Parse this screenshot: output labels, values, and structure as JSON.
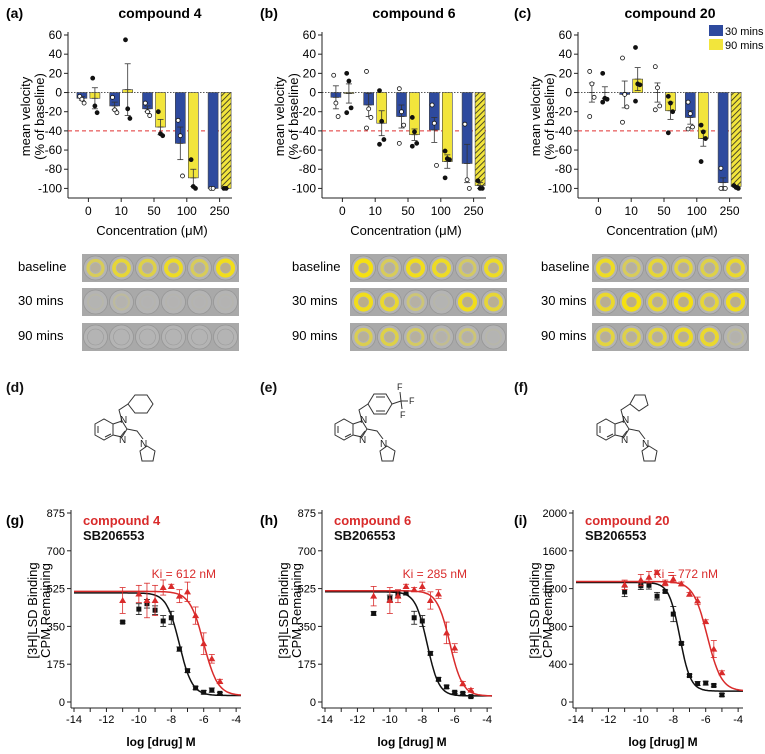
{
  "legend": {
    "items": [
      {
        "label": "30 mins",
        "color": "#2e4a9e"
      },
      {
        "label": "90 mins",
        "color": "#f2e53c"
      }
    ]
  },
  "colors": {
    "bar30": "#2e4a9e",
    "bar90": "#f2e53c",
    "threshold": "#e03030",
    "compound": "#d92b2b",
    "sb": "#111111"
  },
  "images": {
    "row_labels": [
      "baseline",
      "30 mins",
      "90 mins"
    ],
    "intensity": [
      [
        [
          0.5,
          0.7,
          0.6,
          0.8,
          0.5,
          0.85
        ],
        [
          0.05,
          0.12,
          0.02,
          0.02,
          0.02,
          0.02
        ],
        [
          0.0,
          0.0,
          0.0,
          0.0,
          0.0,
          0.0
        ]
      ],
      [
        [
          0.95,
          0.5,
          0.85,
          0.8,
          0.45,
          0.8
        ],
        [
          0.85,
          0.75,
          0.35,
          0.05,
          0.85,
          0.7
        ],
        [
          0.55,
          0.6,
          0.45,
          0.2,
          0.35,
          0.05
        ]
      ],
      [
        [
          0.8,
          0.5,
          0.7,
          0.65,
          0.6,
          0.75
        ],
        [
          0.75,
          1.0,
          0.75,
          0.9,
          0.7,
          0.85
        ],
        [
          0.65,
          0.6,
          0.65,
          0.8,
          0.75,
          0.15
        ]
      ]
    ]
  },
  "structures": [
    {
      "panel": "(d)",
      "substituent": "cyclohexylmethyl",
      "atoms": [
        "N",
        "N",
        "N"
      ]
    },
    {
      "panel": "(e)",
      "substituent": "4-(trifluoromethyl)benzyl",
      "atoms": [
        "N",
        "N",
        "N",
        "F",
        "F",
        "F"
      ]
    },
    {
      "panel": "(f)",
      "substituent": "cyclopentylmethyl",
      "atoms": [
        "N",
        "N",
        "N"
      ]
    }
  ],
  "chart_data": [
    {
      "type": "bar",
      "panel": "(a)",
      "title": "compound 4",
      "xlabel": "Concentration (μM)",
      "ylabel": [
        "mean velocity",
        "(% of baseline)"
      ],
      "categories": [
        "0",
        "10",
        "50",
        "100",
        "250"
      ],
      "ylim": [
        -110,
        60
      ],
      "yticks": [
        60,
        40,
        20,
        0,
        -20,
        -40,
        -60,
        -80,
        -100
      ],
      "threshold": -40,
      "series": [
        {
          "name": "30 mins",
          "values": [
            -6,
            -14,
            -17,
            -53,
            -100
          ],
          "err": [
            2,
            4,
            3,
            17,
            0
          ],
          "hatched": [
            false,
            false,
            false,
            false,
            false
          ],
          "points": [
            [
              -4,
              -7,
              -11
            ],
            [
              -5,
              -18,
              -21
            ],
            [
              -11,
              -20,
              -24
            ],
            [
              -29,
              -45,
              -87
            ],
            [
              -100,
              -100
            ]
          ]
        },
        {
          "name": "90 mins",
          "values": [
            -6,
            3,
            -36,
            -89,
            -100
          ],
          "err": [
            11,
            27,
            8,
            9,
            0
          ],
          "hatched": [
            false,
            false,
            false,
            false,
            true
          ],
          "points": [
            [
              15,
              -14,
              -21
            ],
            [
              55,
              -17,
              -27
            ],
            [
              -20,
              -43,
              -45
            ],
            [
              -70,
              -98,
              -100
            ],
            [
              -100,
              -100
            ]
          ]
        }
      ]
    },
    {
      "type": "bar",
      "panel": "(b)",
      "title": "compound 6",
      "xlabel": "Concentration (μM)",
      "ylabel": [
        "mean velocity",
        "(% of baseline)"
      ],
      "categories": [
        "0",
        "10",
        "50",
        "100",
        "250"
      ],
      "ylim": [
        -110,
        60
      ],
      "yticks": [
        60,
        40,
        20,
        0,
        -20,
        -40,
        -60,
        -80,
        -100
      ],
      "threshold": -40,
      "series": [
        {
          "name": "30 mins",
          "values": [
            -5,
            -13,
            -25,
            -39,
            -74
          ],
          "err": [
            12,
            12,
            12,
            13,
            20
          ],
          "hatched": [
            false,
            false,
            false,
            false,
            false
          ],
          "points": [
            [
              18,
              -11,
              -25
            ],
            [
              22,
              -17,
              -26,
              -37
            ],
            [
              4,
              -20,
              -34,
              -53
            ],
            [
              -13,
              -32,
              -76
            ],
            [
              -33,
              -91,
              -100
            ]
          ]
        },
        {
          "name": "90 mins",
          "values": [
            -1,
            -32,
            -44,
            -72,
            -97
          ],
          "err": [
            10,
            13,
            6,
            7,
            3
          ],
          "hatched": [
            false,
            false,
            false,
            false,
            true
          ],
          "points": [
            [
              20,
              12,
              -16,
              -21
            ],
            [
              2,
              -30,
              -49,
              -54
            ],
            [
              -26,
              -41,
              -53,
              -56
            ],
            [
              -61,
              -69,
              -70,
              -89
            ],
            [
              -92,
              -100,
              -100
            ]
          ]
        }
      ]
    },
    {
      "type": "bar",
      "panel": "(c)",
      "title": "compound 20",
      "xlabel": "Concentration (μM)",
      "ylabel": [
        "mean velocity",
        "(% of baseline)"
      ],
      "categories": [
        "0",
        "10",
        "50",
        "100",
        "250"
      ],
      "ylim": [
        -110,
        60
      ],
      "yticks": [
        60,
        40,
        20,
        0,
        -20,
        -40,
        -60,
        -80,
        -100
      ],
      "threshold": -40,
      "legend": "top-right",
      "series": [
        {
          "name": "30 mins",
          "values": [
            0,
            -2,
            0,
            -26,
            -94
          ],
          "err": [
            10,
            14,
            10,
            7,
            5
          ],
          "hatched": [
            false,
            false,
            false,
            false,
            false
          ],
          "points": [
            [
              22,
              9,
              -5,
              -25
            ],
            [
              36,
              -2,
              -15,
              -31
            ],
            [
              27,
              5,
              -14,
              -18
            ],
            [
              -10,
              -22,
              -36,
              -38
            ],
            [
              -79,
              -100,
              -100,
              -100
            ]
          ]
        },
        {
          "name": "90 mins",
          "values": [
            0,
            14,
            -19,
            -48,
            -98
          ],
          "err": [
            6,
            12,
            9,
            8,
            1
          ],
          "hatched": [
            false,
            false,
            false,
            false,
            true
          ],
          "points": [
            [
              20,
              -6,
              -7,
              -10
            ],
            [
              47,
              9,
              8,
              -9
            ],
            [
              -4,
              -11,
              -20,
              -42
            ],
            [
              -34,
              -41,
              -48,
              -72
            ],
            [
              -97,
              -99,
              -100
            ]
          ]
        }
      ]
    },
    {
      "type": "scatter",
      "panel": "(g)",
      "xlabel": "log [drug] M",
      "ylabel": [
        "[3H]LSD Binding",
        "CPM Remaining"
      ],
      "xlim": [
        -14,
        -3.7
      ],
      "xticks": [
        -14,
        -12,
        -10,
        -8,
        -6,
        -4
      ],
      "ylim": [
        0,
        875
      ],
      "yticks": [
        0,
        175,
        350,
        525,
        700,
        875
      ],
      "annotation": "Ki = 612 nM",
      "series": [
        {
          "name": "compound 4",
          "marker": "triangle",
          "fit": {
            "top": 512,
            "bottom": 30,
            "logIC50": -6.0,
            "hill": 1.0
          },
          "x": [
            -11,
            -10,
            -9.5,
            -9,
            -8.5,
            -8,
            -7.5,
            -7,
            -6.5,
            -6,
            -5.5,
            -5
          ],
          "y": [
            470,
            500,
            470,
            470,
            530,
            535,
            490,
            510,
            400,
            270,
            200,
            95
          ],
          "err": [
            60,
            40,
            80,
            70,
            35,
            10,
            30,
            45,
            40,
            50,
            20,
            10
          ]
        },
        {
          "name": "SB206553",
          "marker": "square",
          "fit": {
            "top": 505,
            "bottom": 30,
            "logIC50": -7.5,
            "hill": 1.1
          },
          "x": [
            -11,
            -10,
            -9.5,
            -9,
            -8.5,
            -8,
            -7.5,
            -7,
            -6.5,
            -6,
            -5.5,
            -5
          ],
          "y": [
            370,
            430,
            455,
            425,
            375,
            390,
            245,
            145,
            65,
            45,
            55,
            40
          ],
          "err": [
            5,
            25,
            20,
            20,
            25,
            30,
            10,
            8,
            8,
            8,
            10,
            5
          ]
        }
      ]
    },
    {
      "type": "scatter",
      "panel": "(h)",
      "xlabel": "log [drug] M",
      "ylabel": [
        "[3H]LSD Binding",
        "CPM Remaining"
      ],
      "xlim": [
        -14,
        -3.7
      ],
      "xticks": [
        -14,
        -12,
        -10,
        -8,
        -6,
        -4
      ],
      "ylim": [
        0,
        875
      ],
      "yticks": [
        0,
        175,
        350,
        525,
        700,
        875
      ],
      "annotation": "Ki = 285 nM",
      "series": [
        {
          "name": "compound 6",
          "marker": "triangle",
          "fit": {
            "top": 515,
            "bottom": 28,
            "logIC50": -6.3,
            "hill": 1.1
          },
          "x": [
            -11,
            -10,
            -9.5,
            -9,
            -8.5,
            -8,
            -7.5,
            -7,
            -6.5,
            -6,
            -5.5,
            -5
          ],
          "y": [
            490,
            470,
            490,
            535,
            520,
            535,
            470,
            500,
            320,
            250,
            85,
            55
          ],
          "err": [
            45,
            60,
            30,
            10,
            10,
            20,
            40,
            20,
            50,
            20,
            10,
            8
          ]
        },
        {
          "name": "SB206553",
          "marker": "square",
          "fit": {
            "top": 510,
            "bottom": 28,
            "logIC50": -7.7,
            "hill": 1.2
          },
          "x": [
            -11,
            -10,
            -9.5,
            -9,
            -8.5,
            -8,
            -7.5,
            -7,
            -6.5,
            -6,
            -5.5,
            -5
          ],
          "y": [
            410,
            480,
            500,
            505,
            390,
            375,
            225,
            105,
            70,
            45,
            40,
            25
          ],
          "err": [
            8,
            15,
            15,
            10,
            30,
            25,
            8,
            8,
            8,
            5,
            5,
            5
          ]
        }
      ]
    },
    {
      "type": "scatter",
      "panel": "(i)",
      "xlabel": "log [drug] M",
      "ylabel": [
        "[3H]LSD Binding",
        "CPM Remaining"
      ],
      "xlim": [
        -14,
        -3.7
      ],
      "xticks": [
        -14,
        -12,
        -10,
        -8,
        -6,
        -4
      ],
      "ylim": [
        0,
        2000
      ],
      "yticks": [
        0,
        400,
        800,
        1200,
        1600,
        2000
      ],
      "annotation": "Ki = 772 nM",
      "series": [
        {
          "name": "compound 20",
          "marker": "triangle",
          "fit": {
            "top": 1275,
            "bottom": 115,
            "logIC50": -5.9,
            "hill": 1.0
          },
          "x": [
            -11,
            -10,
            -9.5,
            -9,
            -8.5,
            -8,
            -7.5,
            -7,
            -6.5,
            -6,
            -5.5,
            -5
          ],
          "y": [
            1240,
            1290,
            1320,
            1370,
            1260,
            1300,
            1250,
            1140,
            1070,
            850,
            560,
            310
          ],
          "err": [
            50,
            60,
            60,
            20,
            30,
            40,
            20,
            20,
            40,
            20,
            90,
            20
          ]
        },
        {
          "name": "SB206553",
          "marker": "square",
          "fit": {
            "top": 1265,
            "bottom": 115,
            "logIC50": -7.6,
            "hill": 1.3
          },
          "x": [
            -11,
            -10,
            -9.5,
            -9,
            -8.5,
            -8,
            -7.5,
            -7,
            -6.5,
            -6,
            -5.5,
            -5
          ],
          "y": [
            1165,
            1230,
            1235,
            1120,
            1170,
            930,
            620,
            280,
            195,
            200,
            175,
            75
          ],
          "err": [
            50,
            40,
            40,
            40,
            15,
            80,
            15,
            15,
            20,
            20,
            15,
            15
          ]
        }
      ]
    }
  ]
}
